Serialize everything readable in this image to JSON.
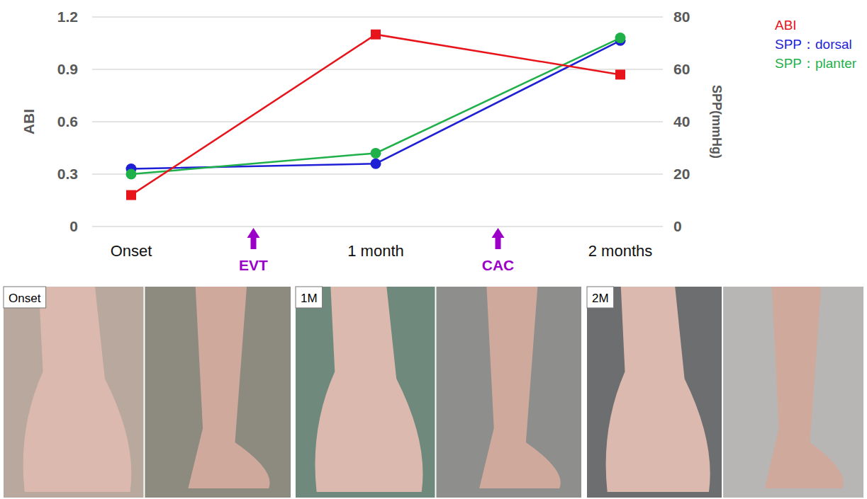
{
  "chart_data": {
    "type": "line",
    "categories": [
      "Onset",
      "1 month",
      "2 months"
    ],
    "y_label": "ABI",
    "y2_label": "SPP(mmHg)",
    "ylim": [
      0,
      1.2
    ],
    "yticks": [
      0,
      0.3,
      0.6,
      0.9,
      1.2
    ],
    "y2lim": [
      0,
      80
    ],
    "y2ticks": [
      0,
      20,
      40,
      60,
      80
    ],
    "grid": true,
    "legend": "top-right",
    "series": [
      {
        "name": "ABI",
        "color": "#e8141b",
        "marker": "square",
        "values": [
          0.18,
          1.1,
          0.87
        ]
      },
      {
        "name": "SPP：dorsal",
        "color": "#1f1fd6",
        "marker": "circle",
        "axis": "y2",
        "values": [
          22,
          24,
          71
        ]
      },
      {
        "name": "SPP：planter",
        "color": "#1fb04a",
        "marker": "circle",
        "axis": "y2",
        "values": [
          20,
          28,
          72
        ]
      }
    ],
    "annotations": [
      {
        "text": "EVT",
        "x": 0.5
      },
      {
        "text": "CAC",
        "x": 1.5
      }
    ]
  },
  "photos": [
    {
      "label": "Onset"
    },
    {
      "label": "1M"
    },
    {
      "label": "2M"
    }
  ]
}
